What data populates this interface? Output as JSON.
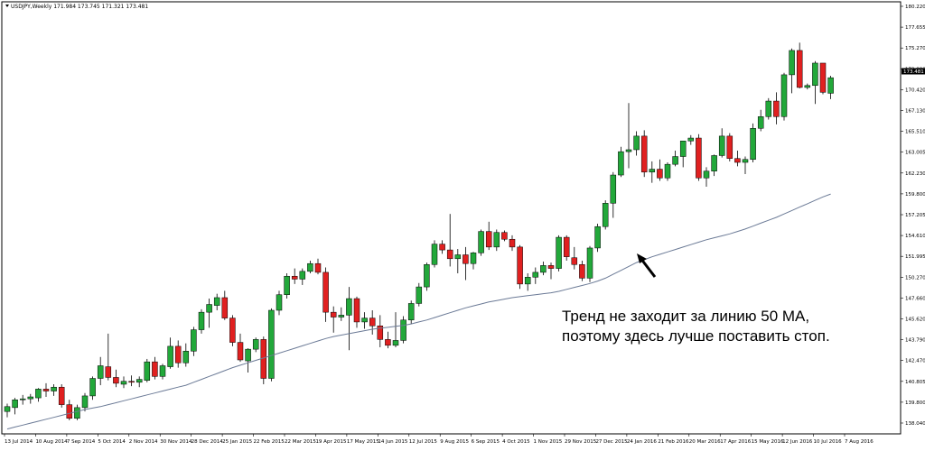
{
  "chart_data": {
    "type": "candlestick",
    "symbol_header": "USDJPY,Weekly  171.984 173.745 171.321 173.481",
    "current_price_label": "173.481",
    "yticks": [
      "180.220",
      "177.655",
      "175.270",
      "172.880",
      "170.420",
      "167.130",
      "165.510",
      "163.005",
      "162.230",
      "159.800",
      "157.205",
      "154.610",
      "151.995",
      "150.270",
      "147.660",
      "145.620",
      "143.790",
      "142.470",
      "140.805",
      "139.800",
      "138.040"
    ],
    "xticks": [
      "13 Jul 2014",
      "10 Aug 2014",
      "7 Sep 2014",
      "5 Oct 2014",
      "2 Nov 2014",
      "30 Nov 2014",
      "28 Dec 2014",
      "25 Jan 2015",
      "22 Feb 2015",
      "22 Mar 2015",
      "19 Apr 2015",
      "17 May 2015",
      "14 Jun 2015",
      "12 Jul 2015",
      "9 Aug 2015",
      "6 Sep 2015",
      "4 Oct 2015",
      "1 Nov 2015",
      "29 Nov 2015",
      "27 Dec 2015",
      "24 Jan 2016",
      "21 Feb 2016",
      "20 Mar 2016",
      "17 Apr 2016",
      "15 May 2016",
      "12 Jun 2016",
      "10 Jul 2016",
      "7 Aug 2016"
    ],
    "ylim": [
      136.9,
      181.3
    ],
    "up_color": "#22a83a",
    "down_color": "#e02020",
    "ma_color": "#6b7a96",
    "ma_label": "50 MA",
    "candles": [
      [
        139.2,
        140.0,
        138.6,
        139.7
      ],
      [
        139.6,
        140.6,
        138.9,
        140.4
      ],
      [
        140.4,
        140.9,
        139.9,
        140.5
      ],
      [
        140.5,
        141.0,
        140.0,
        140.7
      ],
      [
        140.6,
        141.6,
        140.2,
        141.5
      ],
      [
        141.5,
        142.1,
        140.7,
        141.3
      ],
      [
        141.3,
        142.0,
        140.8,
        141.7
      ],
      [
        141.7,
        142.0,
        139.6,
        139.9
      ],
      [
        139.9,
        140.4,
        138.3,
        138.5
      ],
      [
        138.5,
        139.9,
        138.3,
        139.6
      ],
      [
        139.6,
        141.1,
        139.2,
        140.8
      ],
      [
        140.8,
        142.8,
        140.4,
        142.6
      ],
      [
        142.6,
        144.8,
        141.9,
        143.9
      ],
      [
        143.8,
        147.2,
        142.4,
        142.7
      ],
      [
        142.7,
        143.5,
        141.7,
        142.1
      ],
      [
        142.0,
        142.8,
        141.6,
        142.3
      ],
      [
        142.3,
        142.9,
        141.8,
        142.2
      ],
      [
        142.2,
        142.8,
        141.7,
        142.5
      ],
      [
        142.4,
        144.6,
        142.2,
        144.3
      ],
      [
        144.3,
        144.8,
        142.5,
        142.8
      ],
      [
        142.8,
        144.1,
        142.5,
        143.9
      ],
      [
        143.8,
        146.8,
        143.6,
        145.9
      ],
      [
        145.9,
        146.5,
        143.7,
        144.2
      ],
      [
        144.2,
        146.2,
        143.8,
        145.4
      ],
      [
        145.4,
        147.9,
        144.9,
        147.6
      ],
      [
        147.6,
        149.7,
        147.2,
        149.4
      ],
      [
        149.4,
        150.8,
        147.8,
        150.2
      ],
      [
        150.1,
        151.3,
        149.6,
        150.9
      ],
      [
        150.9,
        151.6,
        148.6,
        148.8
      ],
      [
        148.8,
        149.1,
        145.9,
        146.3
      ],
      [
        146.3,
        147.2,
        144.3,
        144.5
      ],
      [
        144.4,
        145.7,
        143.2,
        145.6
      ],
      [
        145.6,
        146.8,
        145.3,
        146.6
      ],
      [
        146.6,
        146.9,
        142.0,
        142.6
      ],
      [
        142.6,
        149.8,
        142.3,
        149.6
      ],
      [
        149.6,
        151.6,
        149.1,
        151.2
      ],
      [
        151.2,
        153.4,
        150.8,
        153.1
      ],
      [
        153.1,
        153.9,
        152.3,
        152.8
      ],
      [
        152.8,
        153.9,
        152.2,
        153.6
      ],
      [
        153.6,
        154.7,
        153.4,
        154.4
      ],
      [
        154.4,
        154.9,
        153.3,
        153.5
      ],
      [
        153.5,
        154.0,
        148.4,
        149.4
      ],
      [
        149.4,
        150.0,
        147.3,
        148.9
      ],
      [
        148.9,
        149.9,
        148.5,
        149.1
      ],
      [
        149.1,
        152.0,
        145.5,
        150.8
      ],
      [
        150.8,
        151.0,
        147.8,
        148.4
      ],
      [
        148.4,
        149.4,
        147.7,
        148.8
      ],
      [
        148.8,
        149.6,
        147.1,
        148.0
      ],
      [
        148.0,
        149.1,
        145.8,
        146.6
      ],
      [
        146.6,
        147.4,
        145.7,
        146.0
      ],
      [
        146.0,
        149.4,
        145.8,
        146.5
      ],
      [
        146.5,
        149.0,
        146.2,
        148.6
      ],
      [
        148.6,
        150.6,
        148.2,
        150.3
      ],
      [
        150.3,
        152.4,
        150.0,
        152.0
      ],
      [
        152.0,
        154.5,
        151.6,
        154.3
      ],
      [
        154.3,
        156.8,
        154.0,
        156.4
      ],
      [
        156.4,
        156.8,
        155.4,
        155.8
      ],
      [
        155.8,
        159.5,
        154.1,
        154.9
      ],
      [
        154.9,
        155.9,
        153.4,
        155.3
      ],
      [
        155.3,
        156.1,
        152.7,
        154.4
      ],
      [
        154.4,
        155.6,
        153.8,
        155.5
      ],
      [
        155.5,
        157.9,
        155.2,
        157.7
      ],
      [
        157.7,
        158.7,
        155.8,
        156.1
      ],
      [
        156.1,
        157.9,
        155.7,
        157.6
      ],
      [
        157.6,
        157.8,
        156.7,
        156.9
      ],
      [
        156.9,
        157.3,
        155.7,
        156.1
      ],
      [
        156.1,
        156.3,
        151.8,
        152.3
      ],
      [
        152.3,
        153.4,
        151.6,
        153.0
      ],
      [
        153.0,
        154.0,
        152.3,
        153.5
      ],
      [
        153.5,
        154.6,
        153.2,
        154.2
      ],
      [
        154.2,
        154.5,
        152.8,
        153.9
      ],
      [
        153.9,
        157.3,
        153.6,
        157.1
      ],
      [
        157.1,
        157.3,
        154.7,
        155.1
      ],
      [
        155.0,
        156.1,
        153.8,
        154.3
      ],
      [
        154.3,
        154.7,
        152.6,
        152.9
      ],
      [
        152.9,
        156.2,
        152.5,
        156.0
      ],
      [
        156.0,
        158.5,
        155.6,
        158.2
      ],
      [
        158.2,
        160.9,
        157.9,
        160.6
      ],
      [
        160.6,
        163.8,
        159.1,
        163.5
      ],
      [
        163.5,
        166.4,
        163.3,
        165.9
      ],
      [
        165.9,
        170.9,
        164.2,
        166.1
      ],
      [
        166.1,
        168.0,
        165.5,
        167.5
      ],
      [
        167.5,
        168.1,
        163.3,
        163.8
      ],
      [
        163.8,
        164.9,
        162.7,
        164.1
      ],
      [
        164.1,
        165.1,
        162.9,
        163.2
      ],
      [
        163.2,
        164.8,
        162.9,
        164.6
      ],
      [
        164.6,
        166.0,
        164.4,
        165.4
      ],
      [
        165.4,
        167.0,
        164.3,
        167.0
      ],
      [
        167.0,
        167.6,
        166.6,
        167.3
      ],
      [
        167.3,
        167.7,
        162.9,
        163.2
      ],
      [
        163.2,
        164.3,
        162.3,
        163.9
      ],
      [
        163.9,
        165.6,
        163.4,
        165.5
      ],
      [
        165.5,
        168.3,
        165.3,
        167.5
      ],
      [
        167.5,
        167.8,
        164.9,
        165.2
      ],
      [
        165.2,
        166.0,
        164.4,
        164.8
      ],
      [
        164.8,
        165.4,
        163.6,
        165.1
      ],
      [
        165.1,
        168.8,
        164.8,
        168.3
      ],
      [
        168.3,
        170.2,
        168.0,
        169.5
      ],
      [
        169.5,
        171.4,
        169.2,
        171.1
      ],
      [
        171.1,
        172.0,
        168.7,
        169.5
      ],
      [
        169.5,
        174.0,
        169.1,
        173.8
      ],
      [
        173.8,
        176.5,
        171.9,
        176.3
      ],
      [
        176.3,
        177.1,
        172.4,
        172.5
      ],
      [
        172.5,
        172.9,
        172.3,
        172.7
      ],
      [
        172.7,
        175.2,
        170.8,
        175.0
      ],
      [
        175.0,
        175.0,
        171.8,
        172.0
      ],
      [
        171.9,
        173.7,
        171.3,
        173.5
      ]
    ],
    "ma_values": [
      137.4,
      137.6,
      137.8,
      138.0,
      138.2,
      138.4,
      138.6,
      138.8,
      139.0,
      139.2,
      139.4,
      139.55,
      139.7,
      139.9,
      140.1,
      140.3,
      140.5,
      140.7,
      140.9,
      141.1,
      141.3,
      141.5,
      141.7,
      141.9,
      142.2,
      142.5,
      142.8,
      143.1,
      143.4,
      143.7,
      143.95,
      144.2,
      144.45,
      144.7,
      144.95,
      145.2,
      145.45,
      145.7,
      145.95,
      146.2,
      146.45,
      146.7,
      146.9,
      147.05,
      147.2,
      147.35,
      147.5,
      147.65,
      147.75,
      147.85,
      147.95,
      148.05,
      148.2,
      148.4,
      148.6,
      148.85,
      149.1,
      149.35,
      149.6,
      149.85,
      150.05,
      150.25,
      150.45,
      150.6,
      150.75,
      150.9,
      151.0,
      151.1,
      151.2,
      151.3,
      151.4,
      151.55,
      151.75,
      151.95,
      152.15,
      152.35,
      152.6,
      152.9,
      153.3,
      153.7,
      154.1,
      154.5,
      154.8,
      155.1,
      155.35,
      155.6,
      155.85,
      156.1,
      156.35,
      156.6,
      156.85,
      157.05,
      157.25,
      157.45,
      157.7,
      157.95,
      158.25,
      158.55,
      158.85,
      159.15,
      159.5,
      159.85,
      160.2,
      160.55,
      160.9,
      161.25,
      161.55
    ],
    "annotation": {
      "line1": "Тренд не заходит за линию 50 MA,",
      "line2": "поэтому здесь лучше поставить стоп."
    }
  }
}
